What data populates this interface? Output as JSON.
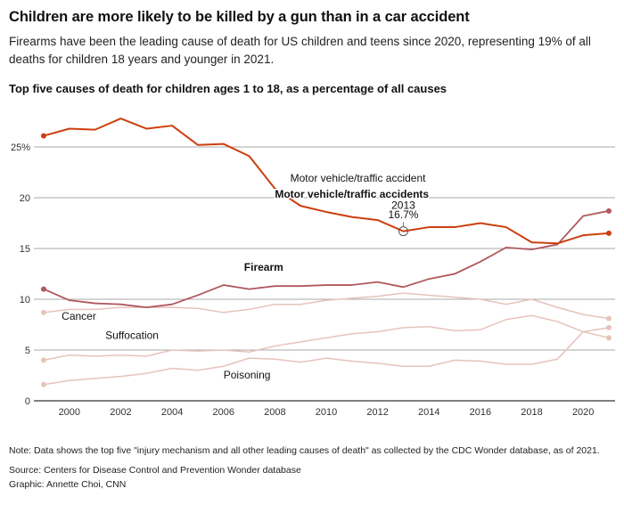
{
  "header": {
    "title": "Children are more likely to be killed by a gun than in a car accident",
    "subtitle": "Firearms have been the leading cause of death for US children and teens since 2020, representing 19% of all deaths for children 18 years and younger in 2021.",
    "chart_heading": "Top five causes of death for children ages 1 to 18, as a percentage of all causes"
  },
  "footer": {
    "note": "Note: Data shows the top five \"injury mechanism and all other leading causes of death\" as collected by the CDC Wonder database, as of 2021.",
    "source": "Source: Centers for Disease Control and Prevention Wonder database",
    "credit": "Graphic: Annette Choi, CNN"
  },
  "chart_data": {
    "type": "line",
    "title": "Top five causes of death for children ages 1 to 18, as a percentage of all causes",
    "xlabel": "",
    "ylabel": "",
    "x": [
      1999,
      2000,
      2001,
      2002,
      2003,
      2004,
      2005,
      2006,
      2007,
      2008,
      2009,
      2010,
      2011,
      2012,
      2013,
      2014,
      2015,
      2016,
      2017,
      2018,
      2019,
      2020,
      2021
    ],
    "xlim": [
      1999,
      2021
    ],
    "ylim": [
      0,
      27.5
    ],
    "xticks": [
      2000,
      2002,
      2004,
      2006,
      2008,
      2010,
      2012,
      2014,
      2016,
      2018,
      2020
    ],
    "yticks": [
      0,
      5,
      10,
      15,
      20,
      25
    ],
    "ytick_labels": [
      "0",
      "5",
      "10",
      "15",
      "20",
      "25%"
    ],
    "grid": true,
    "series": [
      {
        "name": "Motor vehicle/traffic accidents",
        "color": "#cc3e0d",
        "values": [
          26.1,
          26.8,
          26.7,
          27.8,
          26.8,
          27.1,
          25.2,
          25.3,
          24.1,
          20.9,
          19.2,
          18.6,
          18.1,
          17.8,
          16.7,
          17.1,
          17.1,
          17.5,
          17.1,
          15.6,
          15.5,
          16.3,
          16.5
        ]
      },
      {
        "name": "Firearm",
        "color": "#b0585e",
        "values": [
          11.0,
          9.9,
          9.6,
          9.5,
          9.2,
          9.5,
          10.4,
          11.4,
          11.0,
          11.3,
          11.3,
          11.4,
          11.4,
          11.7,
          11.2,
          12.0,
          12.5,
          13.7,
          15.1,
          14.9,
          15.4,
          18.2,
          18.7
        ]
      },
      {
        "name": "Cancer",
        "color": "#e6c3bb",
        "values": [
          8.7,
          9.0,
          9.0,
          9.2,
          9.2,
          9.2,
          9.1,
          8.7,
          9.0,
          9.5,
          9.5,
          9.9,
          10.1,
          10.3,
          10.6,
          10.4,
          10.2,
          10.0,
          9.5,
          10.0,
          9.2,
          8.5,
          8.1
        ]
      },
      {
        "name": "Suffocation",
        "color": "#e6c3bb",
        "values": [
          4.0,
          4.5,
          4.4,
          4.5,
          4.4,
          5.0,
          4.9,
          5.0,
          4.8,
          5.4,
          5.8,
          6.2,
          6.6,
          6.8,
          7.2,
          7.3,
          6.9,
          7.0,
          8.0,
          8.4,
          7.8,
          6.8,
          6.2
        ]
      },
      {
        "name": "Poisoning",
        "color": "#e6c3bb",
        "values": [
          1.6,
          2.0,
          2.2,
          2.4,
          2.7,
          3.2,
          3.0,
          3.4,
          4.2,
          4.1,
          3.8,
          4.2,
          3.9,
          3.7,
          3.4,
          3.4,
          4.0,
          3.9,
          3.6,
          3.6,
          4.1,
          6.8,
          7.2
        ]
      }
    ],
    "annotations": [
      {
        "text": "Motor vehicle/traffic accident",
        "anchor_year": 2008.6,
        "anchor_value": 21.6
      },
      {
        "text": "Motor vehicle/traffic accidents",
        "anchor_year": 2008.0,
        "anchor_value": 20.0,
        "bold": true
      },
      {
        "text": "2013",
        "anchor_year": 2013,
        "anchor_value": 18.9
      },
      {
        "text": "16.7%",
        "anchor_year": 2013,
        "anchor_value": 18.0
      },
      {
        "text": "Firearm",
        "anchor_year": 2006.8,
        "anchor_value": 12.8,
        "bold": true,
        "color": "#7a2a2f"
      },
      {
        "text": "Cancer",
        "anchor_year": 1999.7,
        "anchor_value": 8.0
      },
      {
        "text": "Suffocation",
        "anchor_year": 2001.4,
        "anchor_value": 6.1
      },
      {
        "text": "Poisoning",
        "anchor_year": 2006.0,
        "anchor_value": 2.2
      }
    ],
    "highlight_point": {
      "year": 2013,
      "value": 16.7
    }
  }
}
